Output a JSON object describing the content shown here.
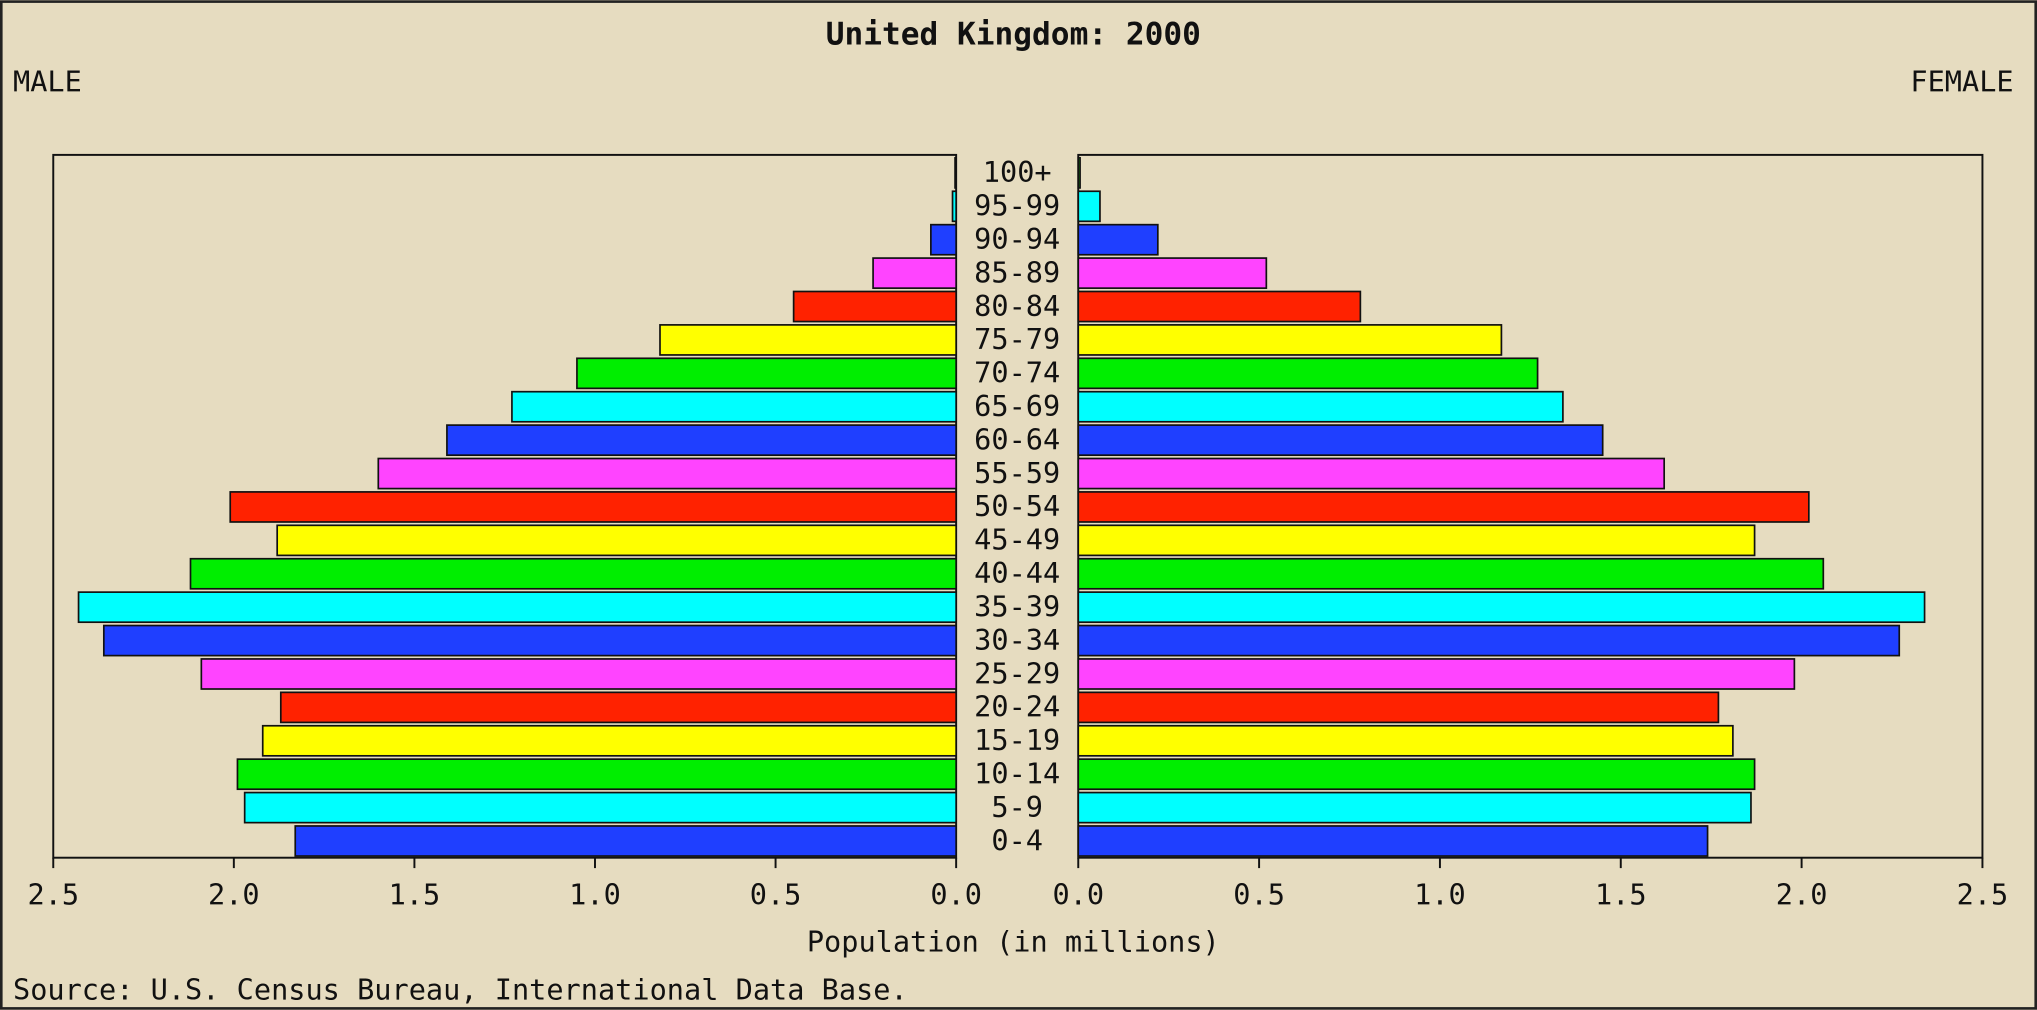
{
  "chart_data": {
    "type": "pyramid",
    "title": "United Kingdom: 2000",
    "categories": [
      "0-4",
      "5-9",
      "10-14",
      "15-19",
      "20-24",
      "25-29",
      "30-34",
      "35-39",
      "40-44",
      "45-49",
      "50-54",
      "55-59",
      "60-64",
      "65-69",
      "70-74",
      "75-79",
      "80-84",
      "85-89",
      "90-94",
      "95-99",
      "100+"
    ],
    "series": [
      {
        "name": "MALE",
        "values": [
          1.83,
          1.97,
          1.99,
          1.92,
          1.87,
          2.09,
          2.36,
          2.43,
          2.12,
          1.88,
          2.01,
          1.6,
          1.41,
          1.23,
          1.05,
          0.82,
          0.45,
          0.23,
          0.07,
          0.01,
          0.003
        ]
      },
      {
        "name": "FEMALE",
        "values": [
          1.74,
          1.86,
          1.87,
          1.81,
          1.77,
          1.98,
          2.27,
          2.34,
          2.06,
          1.87,
          2.02,
          1.62,
          1.45,
          1.34,
          1.27,
          1.17,
          0.78,
          0.52,
          0.22,
          0.06,
          0.005
        ]
      }
    ],
    "colors": [
      "#1f3fff",
      "#00ffff",
      "#00ee00",
      "#ffff00",
      "#ff2200",
      "#ff44ff"
    ],
    "xlim": [
      0,
      2.5
    ],
    "xticks": [
      {
        "value": 0,
        "label": "0.0"
      },
      0.5,
      {
        "value": 1,
        "label": "1.0"
      },
      1.5,
      {
        "value": 2,
        "label": "2.0"
      },
      2.5
    ],
    "xlabel": "Population (in millions)",
    "source": "Source: U.S. Census Bureau, International Data Base."
  }
}
